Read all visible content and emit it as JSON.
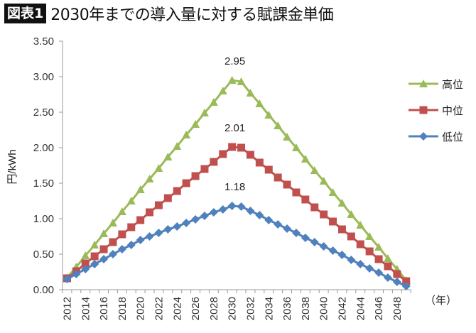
{
  "header": {
    "badge": "図表1",
    "title": "2030年までの導入量に対する賦課金単価"
  },
  "chart_data": {
    "type": "line",
    "title": "2030年までの導入量に対する賦課金単価",
    "ylabel": "円/kWh",
    "xlabel": "（年）",
    "ylim": [
      0,
      3.5
    ],
    "yticks": [
      "0.00",
      "0.50",
      "1.00",
      "1.50",
      "2.00",
      "2.50",
      "3.00",
      "3.50"
    ],
    "x": [
      2012,
      2013,
      2014,
      2015,
      2016,
      2017,
      2018,
      2019,
      2020,
      2021,
      2022,
      2023,
      2024,
      2025,
      2026,
      2027,
      2028,
      2029,
      2030,
      2031,
      2032,
      2033,
      2034,
      2035,
      2036,
      2037,
      2038,
      2039,
      2040,
      2041,
      2042,
      2043,
      2044,
      2045,
      2046,
      2047,
      2048,
      2049
    ],
    "xtick_labels": [
      "2012",
      "2014",
      "2016",
      "2018",
      "2020",
      "2022",
      "2024",
      "2026",
      "2028",
      "2030",
      "2032",
      "2034",
      "2036",
      "2038",
      "2040",
      "2042",
      "2044",
      "2046",
      "2048"
    ],
    "grid": false,
    "legend": "right",
    "series": [
      {
        "name": "高位",
        "color": "#9BBB59",
        "marker": "triangle",
        "values": [
          0.17,
          0.32,
          0.48,
          0.63,
          0.79,
          0.94,
          1.1,
          1.25,
          1.41,
          1.56,
          1.71,
          1.87,
          2.02,
          2.18,
          2.33,
          2.49,
          2.64,
          2.8,
          2.95,
          2.93,
          2.77,
          2.62,
          2.46,
          2.31,
          2.15,
          2.0,
          1.84,
          1.68,
          1.53,
          1.37,
          1.22,
          1.06,
          0.91,
          0.75,
          0.6,
          0.44,
          0.29,
          0.13
        ]
      },
      {
        "name": "中位",
        "color": "#C0504D",
        "marker": "square",
        "values": [
          0.16,
          0.26,
          0.37,
          0.47,
          0.57,
          0.67,
          0.78,
          0.88,
          0.98,
          1.09,
          1.19,
          1.29,
          1.39,
          1.5,
          1.6,
          1.7,
          1.8,
          1.91,
          2.01,
          2.0,
          1.9,
          1.79,
          1.69,
          1.58,
          1.48,
          1.37,
          1.27,
          1.16,
          1.06,
          0.96,
          0.85,
          0.75,
          0.64,
          0.54,
          0.43,
          0.33,
          0.22,
          0.12
        ]
      },
      {
        "name": "低位",
        "color": "#4F81BD",
        "marker": "diamond",
        "values": [
          0.15,
          0.22,
          0.29,
          0.36,
          0.43,
          0.5,
          0.57,
          0.63,
          0.7,
          0.75,
          0.8,
          0.85,
          0.89,
          0.94,
          0.99,
          1.04,
          1.09,
          1.13,
          1.18,
          1.17,
          1.11,
          1.05,
          0.98,
          0.92,
          0.86,
          0.8,
          0.73,
          0.67,
          0.61,
          0.55,
          0.49,
          0.42,
          0.36,
          0.3,
          0.24,
          0.17,
          0.11,
          0.05
        ]
      }
    ],
    "annotations": [
      "2.95",
      "2.01",
      "1.18"
    ]
  }
}
